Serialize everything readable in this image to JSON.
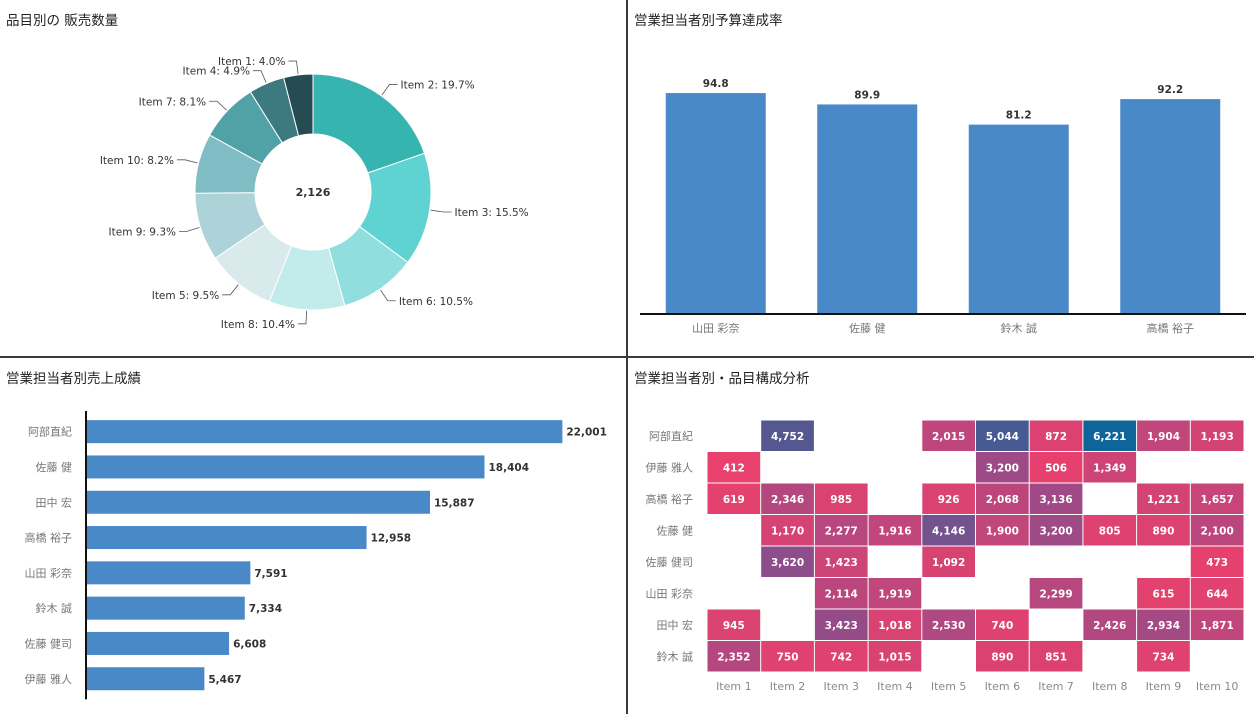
{
  "dashboard": {
    "panels": [
      {
        "id": "donut",
        "title": "品目別の 販売数量"
      },
      {
        "id": "budget",
        "title": "営業担当者別予算達成率"
      },
      {
        "id": "sales",
        "title": "営業担当者別売上成績"
      },
      {
        "id": "matrix",
        "title": "営業担当者別・品目構成分析"
      }
    ]
  },
  "colors": {
    "bar": "#4a89c8",
    "axis": "#111111",
    "label": "#333333",
    "category": "#777777",
    "donut": [
      "#36b5b0",
      "#5fd2d2",
      "#91dede",
      "#c2ecec",
      "#d9eaed",
      "#add3d8",
      "#7fbcc3",
      "#51a2a6",
      "#3c7a7f",
      "#244c52"
    ],
    "heat_low": "#e8416d",
    "heat_mid": "#9b4a88",
    "heat_high": "#0e6599"
  },
  "chart_data": [
    {
      "id": "donut",
      "type": "pie",
      "title": "品目別の 販売数量",
      "center_label": "2,126",
      "slices": [
        {
          "label": "Item 1: 4.0%",
          "name": "Item 1",
          "percent": 4.0
        },
        {
          "label": "Item 4: 4.9%",
          "name": "Item 4",
          "percent": 4.9
        },
        {
          "label": "Item 7: 8.1%",
          "name": "Item 7",
          "percent": 8.1
        },
        {
          "label": "Item 10: 8.2%",
          "name": "Item 10",
          "percent": 8.2
        },
        {
          "label": "Item 2: 19.7%",
          "name": "Item 2",
          "percent": 19.7
        },
        {
          "label": "Item 3: 15.5%",
          "name": "Item 3",
          "percent": 15.5
        },
        {
          "label": "Item 6: 10.5%",
          "name": "Item 6",
          "percent": 10.5
        },
        {
          "label": "Item 8: 10.4%",
          "name": "Item 8",
          "percent": 10.4
        },
        {
          "label": "Item 5: 9.5%",
          "name": "Item 5",
          "percent": 9.5
        },
        {
          "label": "Item 9: 9.3%",
          "name": "Item 9",
          "percent": 9.3
        }
      ],
      "draw_order": [
        4,
        5,
        6,
        7,
        8,
        9,
        3,
        2,
        1,
        0
      ]
    },
    {
      "id": "budget",
      "type": "bar",
      "title": "営業担当者別予算達成率",
      "categories": [
        "山田 彩奈",
        "佐藤 健",
        "鈴木 誠",
        "高橋 裕子"
      ],
      "values": [
        94.8,
        89.9,
        81.2,
        92.2
      ],
      "value_labels": [
        "94.8",
        "89.9",
        "81.2",
        "92.2"
      ],
      "ylim": [
        0,
        100
      ]
    },
    {
      "id": "sales",
      "type": "bar",
      "orientation": "horizontal",
      "title": "営業担当者別売上成績",
      "categories": [
        "阿部直紀",
        "佐藤 健",
        "田中 宏",
        "高橋 裕子",
        "山田 彩奈",
        "鈴木 誠",
        "佐藤 健司",
        "伊藤 雅人"
      ],
      "values": [
        22001,
        18404,
        15887,
        12958,
        7591,
        7334,
        6608,
        5467
      ],
      "value_labels": [
        "22,001",
        "18,404",
        "15,887",
        "12,958",
        "7,591",
        "7,334",
        "6,608",
        "5,467"
      ],
      "xlim": [
        0,
        23000
      ]
    },
    {
      "id": "matrix",
      "type": "heatmap",
      "title": "営業担当者別・品目構成分析",
      "columns": [
        "Item 1",
        "Item 2",
        "Item 3",
        "Item 4",
        "Item 5",
        "Item 6",
        "Item 7",
        "Item 8",
        "Item 9",
        "Item 10"
      ],
      "rows": [
        {
          "name": "阿部直紀",
          "values": [
            null,
            4752,
            null,
            null,
            2015,
            5044,
            872,
            6221,
            1904,
            1193
          ],
          "labels": [
            "",
            "4,752",
            "",
            "",
            "2,015",
            "5,044",
            "872",
            "6,221",
            "1,904",
            "1,193"
          ]
        },
        {
          "name": "伊藤 雅人",
          "values": [
            412,
            null,
            null,
            null,
            null,
            3200,
            506,
            1349,
            null,
            null
          ],
          "labels": [
            "412",
            "",
            "",
            "",
            "",
            "3,200",
            "506",
            "1,349",
            "",
            ""
          ]
        },
        {
          "name": "高橋 裕子",
          "values": [
            619,
            2346,
            985,
            null,
            926,
            2068,
            3136,
            null,
            1221,
            1657
          ],
          "labels": [
            "619",
            "2,346",
            "985",
            "",
            "926",
            "2,068",
            "3,136",
            "",
            "1,221",
            "1,657"
          ]
        },
        {
          "name": "佐藤 健",
          "values": [
            null,
            1170,
            2277,
            1916,
            4146,
            1900,
            3200,
            805,
            890,
            2100
          ],
          "labels": [
            "",
            "1,170",
            "2,277",
            "1,916",
            "4,146",
            "1,900",
            "3,200",
            "805",
            "890",
            "2,100"
          ]
        },
        {
          "name": "佐藤 健司",
          "values": [
            null,
            3620,
            1423,
            null,
            1092,
            null,
            null,
            null,
            null,
            473
          ],
          "labels": [
            "",
            "3,620",
            "1,423",
            "",
            "1,092",
            "",
            "",
            "",
            "",
            "473"
          ]
        },
        {
          "name": "山田 彩奈",
          "values": [
            null,
            null,
            2114,
            1919,
            null,
            null,
            2299,
            null,
            615,
            644
          ],
          "labels": [
            "",
            "",
            "2,114",
            "1,919",
            "",
            "",
            "2,299",
            "",
            "615",
            "644"
          ]
        },
        {
          "name": "田中 宏",
          "values": [
            945,
            null,
            3423,
            1018,
            2530,
            740,
            null,
            2426,
            2934,
            1871
          ],
          "labels": [
            "945",
            "",
            "3,423",
            "1,018",
            "2,530",
            "740",
            "",
            "2,426",
            "2,934",
            "1,871"
          ]
        },
        {
          "name": "鈴木 誠",
          "values": [
            2352,
            750,
            742,
            1015,
            null,
            890,
            851,
            null,
            734,
            null
          ],
          "labels": [
            "2,352",
            "750",
            "742",
            "1,015",
            "",
            "890",
            "851",
            "",
            "734",
            ""
          ]
        }
      ],
      "value_range": [
        412,
        6221
      ]
    }
  ]
}
